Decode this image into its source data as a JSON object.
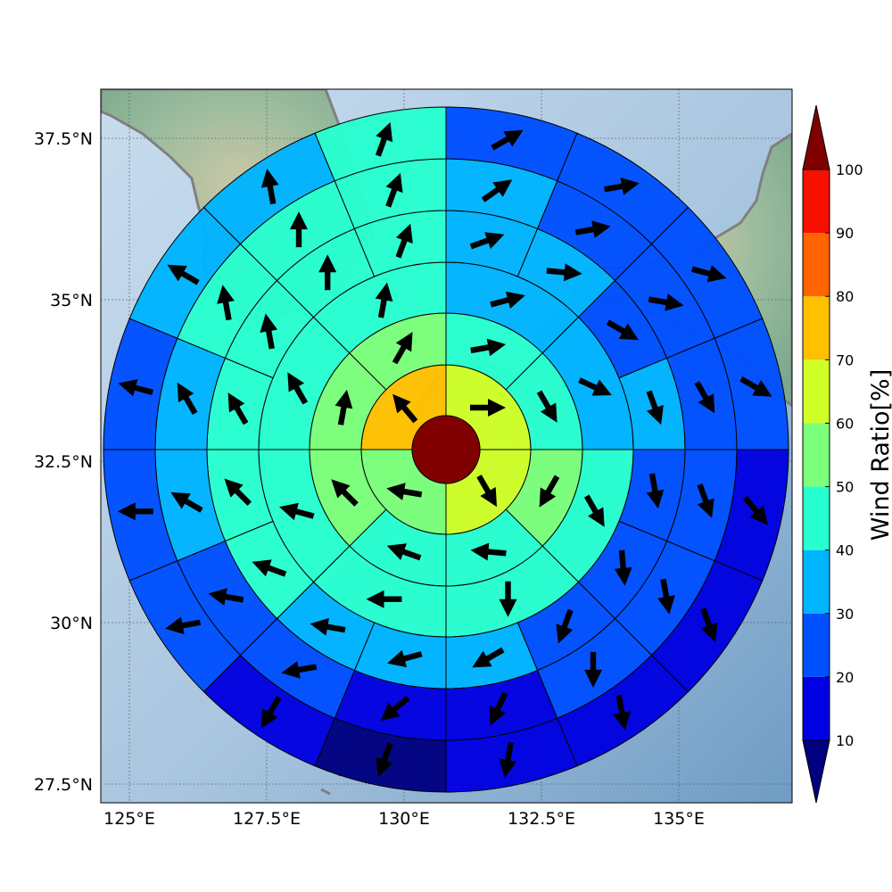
{
  "chart_data": {
    "type": "heatmap",
    "subtype": "polar wind-ratio sector map over geographic basemap",
    "map": {
      "lon_range": [
        124.5,
        137.2
      ],
      "lat_range": [
        27.2,
        38.3
      ],
      "lon_ticks": [
        {
          "value": 125,
          "label": "125°E"
        },
        {
          "value": 127.5,
          "label": "127.5°E"
        },
        {
          "value": 130,
          "label": "130°E"
        },
        {
          "value": 132.5,
          "label": "132.5°E"
        },
        {
          "value": 135,
          "label": "135°E"
        }
      ],
      "lat_ticks": [
        {
          "value": 37.5,
          "label": "37.5°N"
        },
        {
          "value": 35,
          "label": "35°N"
        },
        {
          "value": 32.5,
          "label": "32.5°N"
        },
        {
          "value": 30,
          "label": "30°N"
        },
        {
          "value": 27.5,
          "label": "27.5°N"
        }
      ],
      "grid": true,
      "grid_style": "dotted",
      "ocean_color": "#9fc0dc",
      "land_color": "#8fb59a",
      "coastline_color": "#808080"
    },
    "polar": {
      "center_color": "#800000",
      "ring_edges_km": [
        0,
        30,
        80,
        130,
        180,
        230,
        280
      ],
      "rings": [
        {
          "index": 1,
          "sector_count": 4,
          "start_angle_deg": 0,
          "values": [
            65,
            60,
            55,
            75
          ],
          "directions_deg": [
            90,
            150,
            280,
            320
          ]
        },
        {
          "index": 2,
          "sector_count": 8,
          "start_angle_deg": 0,
          "values": [
            45,
            45,
            55,
            45,
            45,
            55,
            55,
            55
          ],
          "directions_deg": [
            80,
            150,
            210,
            275,
            290,
            315,
            10,
            30
          ]
        },
        {
          "index": 3,
          "sector_count": 8,
          "start_angle_deg": 0,
          "values": [
            35,
            35,
            45,
            45,
            45,
            45,
            45,
            45
          ],
          "directions_deg": [
            75,
            115,
            150,
            180,
            270,
            285,
            330,
            10
          ]
        },
        {
          "index": 4,
          "sector_count": 16,
          "start_angle_deg": 0,
          "values": [
            35,
            35,
            25,
            35,
            25,
            25,
            25,
            35,
            35,
            35,
            45,
            45,
            45,
            45,
            45,
            45
          ],
          "directions_deg": [
            70,
            95,
            120,
            160,
            170,
            175,
            200,
            240,
            255,
            280,
            290,
            315,
            330,
            350,
            0,
            20
          ]
        },
        {
          "index": 5,
          "sector_count": 16,
          "start_angle_deg": 0,
          "values": [
            35,
            25,
            25,
            25,
            25,
            25,
            25,
            15,
            15,
            25,
            25,
            35,
            35,
            45,
            45,
            45
          ],
          "directions_deg": [
            55,
            80,
            100,
            150,
            160,
            170,
            180,
            205,
            230,
            260,
            280,
            300,
            330,
            350,
            0,
            20
          ]
        },
        {
          "index": 6,
          "sector_count": 16,
          "start_angle_deg": 0,
          "values": [
            25,
            25,
            25,
            25,
            15,
            15,
            15,
            15,
            5,
            15,
            25,
            25,
            25,
            35,
            35,
            45
          ],
          "directions_deg": [
            60,
            80,
            105,
            120,
            140,
            160,
            170,
            190,
            200,
            210,
            260,
            270,
            285,
            300,
            350,
            20
          ]
        }
      ]
    },
    "colorbar": {
      "label": "Wind Ratio[%]",
      "ticks": [
        10,
        20,
        30,
        40,
        50,
        60,
        70,
        80,
        90,
        100
      ],
      "bins": [
        {
          "min": 10,
          "max": 20,
          "color": "#0000e0"
        },
        {
          "min": 20,
          "max": 30,
          "color": "#0050ff"
        },
        {
          "min": 30,
          "max": 40,
          "color": "#00b4ff"
        },
        {
          "min": 40,
          "max": 50,
          "color": "#28ffd0"
        },
        {
          "min": 50,
          "max": 60,
          "color": "#7cff7a"
        },
        {
          "min": 60,
          "max": 70,
          "color": "#d0ff28"
        },
        {
          "min": 70,
          "max": 80,
          "color": "#ffc000"
        },
        {
          "min": 80,
          "max": 90,
          "color": "#ff6400"
        },
        {
          "min": 90,
          "max": 100,
          "color": "#f51000"
        }
      ],
      "under_color": "#000080",
      "over_color": "#800000"
    }
  }
}
